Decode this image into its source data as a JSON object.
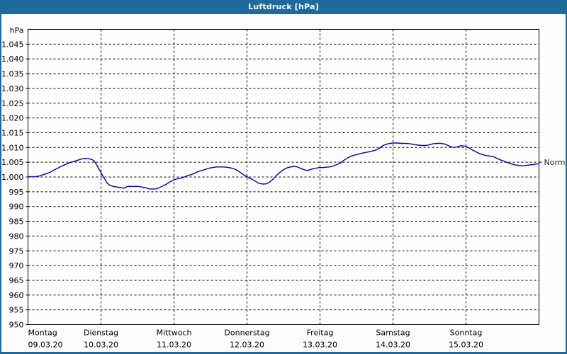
{
  "window": {
    "title": "Luftdruck [hPa]",
    "title_bg": "#1e6a9c",
    "title_color": "#ffffff",
    "border_color": "#1e6a9c"
  },
  "chart_data": {
    "type": "line",
    "title": "Luftdruck [hPa]",
    "ylabel": "hPa",
    "unit_label": "hPa",
    "ylim": [
      950,
      1050
    ],
    "y_tick_step": 5,
    "y_tick_labels_top_to_bottom": [
      "1.045",
      "1.040",
      "1.035",
      "1.030",
      "1.025",
      "1.020",
      "1.015",
      "1.010",
      "1.005",
      "1.000",
      "995",
      "990",
      "985",
      "980",
      "975",
      "970",
      "965",
      "960",
      "955",
      "950"
    ],
    "x_range_days": [
      0,
      7
    ],
    "x_days": [
      {
        "name": "Montag",
        "date": "09.03.20"
      },
      {
        "name": "Dienstag",
        "date": "10.03.20"
      },
      {
        "name": "Mittwoch",
        "date": "11.03.20"
      },
      {
        "name": "Donnerstag",
        "date": "12.03.20"
      },
      {
        "name": "Freitag",
        "date": "13.03.20"
      },
      {
        "name": "Samstag",
        "date": "14.03.20"
      },
      {
        "name": "Sonntag",
        "date": "15.03.20"
      }
    ],
    "grid": "dashed",
    "line_color": "#0000bb",
    "annotation": {
      "label": "Normal",
      "value": 1005,
      "color": "#222222"
    },
    "series": [
      {
        "name": "Luftdruck",
        "points": [
          [
            0,
            1000.1
          ],
          [
            0.053,
            1000.1
          ],
          [
            0.102,
            1000.1
          ],
          [
            0.15,
            1000.3
          ],
          [
            0.199,
            1000.7
          ],
          [
            0.248,
            1001.1
          ],
          [
            0.296,
            1001.5
          ],
          [
            0.345,
            1002.2
          ],
          [
            0.393,
            1002.8
          ],
          [
            0.442,
            1003.4
          ],
          [
            0.49,
            1004
          ],
          [
            0.539,
            1004.5
          ],
          [
            0.587,
            1005
          ],
          [
            0.636,
            1005.3
          ],
          [
            0.684,
            1005.7
          ],
          [
            0.733,
            1006.1
          ],
          [
            0.782,
            1006.3
          ],
          [
            0.83,
            1006.2
          ],
          [
            0.879,
            1005.9
          ],
          [
            0.908,
            1005.4
          ],
          [
            0.937,
            1004.3
          ],
          [
            0.966,
            1002.9
          ],
          [
            0.995,
            1001.7
          ],
          [
            1.024,
            1000.4
          ],
          [
            1.053,
            999.2
          ],
          [
            1.083,
            998
          ],
          [
            1.121,
            997.2
          ],
          [
            1.17,
            996.8
          ],
          [
            1.218,
            996.6
          ],
          [
            1.267,
            996.4
          ],
          [
            1.316,
            996.2
          ],
          [
            1.364,
            996.8
          ],
          [
            1.413,
            996.8
          ],
          [
            1.461,
            996.8
          ],
          [
            1.51,
            996.8
          ],
          [
            1.558,
            996.6
          ],
          [
            1.607,
            996.4
          ],
          [
            1.655,
            996
          ],
          [
            1.704,
            995.9
          ],
          [
            1.752,
            996
          ],
          [
            1.801,
            996.4
          ],
          [
            1.85,
            997
          ],
          [
            1.898,
            997.6
          ],
          [
            1.947,
            998.4
          ],
          [
            1.995,
            999
          ],
          [
            2.044,
            999.4
          ],
          [
            2.092,
            999.6
          ],
          [
            2.141,
            1000
          ],
          [
            2.189,
            1000.5
          ],
          [
            2.238,
            1000.8
          ],
          [
            2.286,
            1001.3
          ],
          [
            2.335,
            1001.9
          ],
          [
            2.383,
            1002.2
          ],
          [
            2.432,
            1002.6
          ],
          [
            2.481,
            1003
          ],
          [
            2.529,
            1003.2
          ],
          [
            2.578,
            1003.4
          ],
          [
            2.626,
            1003.4
          ],
          [
            2.675,
            1003.4
          ],
          [
            2.723,
            1003.3
          ],
          [
            2.772,
            1003.1
          ],
          [
            2.82,
            1002.8
          ],
          [
            2.869,
            1002.2
          ],
          [
            2.917,
            1001.4
          ],
          [
            2.956,
            1000.7
          ],
          [
            2.995,
            1000.2
          ],
          [
            3.034,
            999.6
          ],
          [
            3.073,
            999.2
          ],
          [
            3.112,
            998.6
          ],
          [
            3.151,
            998
          ],
          [
            3.189,
            997.7
          ],
          [
            3.228,
            997.6
          ],
          [
            3.267,
            997.7
          ],
          [
            3.306,
            998.2
          ],
          [
            3.354,
            999.2
          ],
          [
            3.403,
            1000.5
          ],
          [
            3.451,
            1001.6
          ],
          [
            3.5,
            1002.5
          ],
          [
            3.549,
            1003.1
          ],
          [
            3.597,
            1003.4
          ],
          [
            3.646,
            1003.6
          ],
          [
            3.694,
            1003.4
          ],
          [
            3.743,
            1002.8
          ],
          [
            3.791,
            1002.4
          ],
          [
            3.83,
            1002.2
          ],
          [
            3.869,
            1002.5
          ],
          [
            3.908,
            1002.8
          ],
          [
            3.947,
            1003
          ],
          [
            3.986,
            1003.2
          ],
          [
            4.034,
            1003.2
          ],
          [
            4.083,
            1003.3
          ],
          [
            4.131,
            1003.4
          ],
          [
            4.18,
            1003.7
          ],
          [
            4.228,
            1004.2
          ],
          [
            4.277,
            1004.7
          ],
          [
            4.325,
            1005.6
          ],
          [
            4.374,
            1006.4
          ],
          [
            4.422,
            1007
          ],
          [
            4.471,
            1007.4
          ],
          [
            4.519,
            1007.7
          ],
          [
            4.568,
            1008
          ],
          [
            4.617,
            1008.3
          ],
          [
            4.665,
            1008.5
          ],
          [
            4.714,
            1008.8
          ],
          [
            4.762,
            1009.1
          ],
          [
            4.811,
            1009.7
          ],
          [
            4.859,
            1010.6
          ],
          [
            4.898,
            1011
          ],
          [
            4.937,
            1011.3
          ],
          [
            4.995,
            1011.5
          ],
          [
            5.053,
            1011.5
          ],
          [
            5.112,
            1011.4
          ],
          [
            5.17,
            1011.4
          ],
          [
            5.228,
            1011.3
          ],
          [
            5.286,
            1011
          ],
          [
            5.345,
            1010.8
          ],
          [
            5.403,
            1010.7
          ],
          [
            5.461,
            1010.7
          ],
          [
            5.51,
            1011
          ],
          [
            5.558,
            1011.3
          ],
          [
            5.607,
            1011.4
          ],
          [
            5.655,
            1011.4
          ],
          [
            5.704,
            1011.2
          ],
          [
            5.752,
            1010.7
          ],
          [
            5.801,
            1010.2
          ],
          [
            5.84,
            1010
          ],
          [
            5.879,
            1010.2
          ],
          [
            5.927,
            1010.6
          ],
          [
            5.966,
            1010.5
          ],
          [
            5.995,
            1010.4
          ],
          [
            6.044,
            1009.8
          ],
          [
            6.092,
            1009.1
          ],
          [
            6.141,
            1008.5
          ],
          [
            6.189,
            1007.9
          ],
          [
            6.238,
            1007.5
          ],
          [
            6.286,
            1007.2
          ],
          [
            6.335,
            1007.1
          ],
          [
            6.383,
            1006.8
          ],
          [
            6.432,
            1006.2
          ],
          [
            6.481,
            1005.7
          ],
          [
            6.529,
            1005.3
          ],
          [
            6.578,
            1004.8
          ],
          [
            6.626,
            1004.4
          ],
          [
            6.675,
            1004.1
          ],
          [
            6.723,
            1003.9
          ],
          [
            6.772,
            1003.8
          ],
          [
            6.82,
            1003.9
          ],
          [
            6.869,
            1004.1
          ],
          [
            6.917,
            1004.2
          ],
          [
            6.966,
            1004.4
          ],
          [
            6.995,
            1004.5
          ]
        ]
      }
    ]
  }
}
